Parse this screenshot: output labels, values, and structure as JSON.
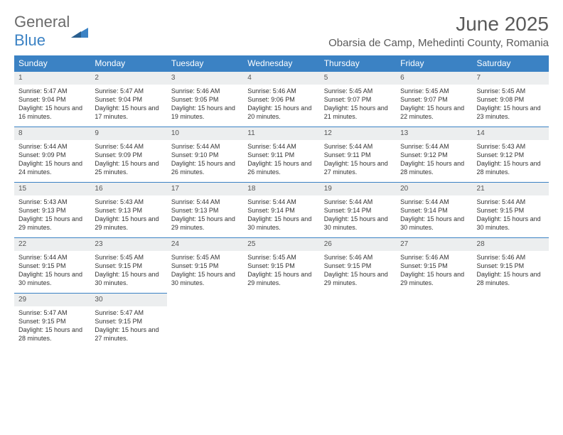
{
  "logo": {
    "word1": "General",
    "word2": "Blue"
  },
  "title": "June 2025",
  "location": "Obarsia de Camp, Mehedinti County, Romania",
  "colors": {
    "header_bg": "#3b82c4",
    "header_text": "#ffffff",
    "daynum_bg": "#eceeef",
    "daynum_border": "#3b82c4",
    "body_text": "#333333",
    "title_text": "#5a5a5a",
    "logo_gray": "#6b6b6b",
    "logo_blue": "#3b82c4"
  },
  "columns": [
    "Sunday",
    "Monday",
    "Tuesday",
    "Wednesday",
    "Thursday",
    "Friday",
    "Saturday"
  ],
  "days": [
    {
      "n": 1,
      "sr": "5:47 AM",
      "ss": "9:04 PM",
      "dl": "15 hours and 16 minutes."
    },
    {
      "n": 2,
      "sr": "5:47 AM",
      "ss": "9:04 PM",
      "dl": "15 hours and 17 minutes."
    },
    {
      "n": 3,
      "sr": "5:46 AM",
      "ss": "9:05 PM",
      "dl": "15 hours and 19 minutes."
    },
    {
      "n": 4,
      "sr": "5:46 AM",
      "ss": "9:06 PM",
      "dl": "15 hours and 20 minutes."
    },
    {
      "n": 5,
      "sr": "5:45 AM",
      "ss": "9:07 PM",
      "dl": "15 hours and 21 minutes."
    },
    {
      "n": 6,
      "sr": "5:45 AM",
      "ss": "9:07 PM",
      "dl": "15 hours and 22 minutes."
    },
    {
      "n": 7,
      "sr": "5:45 AM",
      "ss": "9:08 PM",
      "dl": "15 hours and 23 minutes."
    },
    {
      "n": 8,
      "sr": "5:44 AM",
      "ss": "9:09 PM",
      "dl": "15 hours and 24 minutes."
    },
    {
      "n": 9,
      "sr": "5:44 AM",
      "ss": "9:09 PM",
      "dl": "15 hours and 25 minutes."
    },
    {
      "n": 10,
      "sr": "5:44 AM",
      "ss": "9:10 PM",
      "dl": "15 hours and 26 minutes."
    },
    {
      "n": 11,
      "sr": "5:44 AM",
      "ss": "9:11 PM",
      "dl": "15 hours and 26 minutes."
    },
    {
      "n": 12,
      "sr": "5:44 AM",
      "ss": "9:11 PM",
      "dl": "15 hours and 27 minutes."
    },
    {
      "n": 13,
      "sr": "5:44 AM",
      "ss": "9:12 PM",
      "dl": "15 hours and 28 minutes."
    },
    {
      "n": 14,
      "sr": "5:43 AM",
      "ss": "9:12 PM",
      "dl": "15 hours and 28 minutes."
    },
    {
      "n": 15,
      "sr": "5:43 AM",
      "ss": "9:13 PM",
      "dl": "15 hours and 29 minutes."
    },
    {
      "n": 16,
      "sr": "5:43 AM",
      "ss": "9:13 PM",
      "dl": "15 hours and 29 minutes."
    },
    {
      "n": 17,
      "sr": "5:44 AM",
      "ss": "9:13 PM",
      "dl": "15 hours and 29 minutes."
    },
    {
      "n": 18,
      "sr": "5:44 AM",
      "ss": "9:14 PM",
      "dl": "15 hours and 30 minutes."
    },
    {
      "n": 19,
      "sr": "5:44 AM",
      "ss": "9:14 PM",
      "dl": "15 hours and 30 minutes."
    },
    {
      "n": 20,
      "sr": "5:44 AM",
      "ss": "9:14 PM",
      "dl": "15 hours and 30 minutes."
    },
    {
      "n": 21,
      "sr": "5:44 AM",
      "ss": "9:15 PM",
      "dl": "15 hours and 30 minutes."
    },
    {
      "n": 22,
      "sr": "5:44 AM",
      "ss": "9:15 PM",
      "dl": "15 hours and 30 minutes."
    },
    {
      "n": 23,
      "sr": "5:45 AM",
      "ss": "9:15 PM",
      "dl": "15 hours and 30 minutes."
    },
    {
      "n": 24,
      "sr": "5:45 AM",
      "ss": "9:15 PM",
      "dl": "15 hours and 30 minutes."
    },
    {
      "n": 25,
      "sr": "5:45 AM",
      "ss": "9:15 PM",
      "dl": "15 hours and 29 minutes."
    },
    {
      "n": 26,
      "sr": "5:46 AM",
      "ss": "9:15 PM",
      "dl": "15 hours and 29 minutes."
    },
    {
      "n": 27,
      "sr": "5:46 AM",
      "ss": "9:15 PM",
      "dl": "15 hours and 29 minutes."
    },
    {
      "n": 28,
      "sr": "5:46 AM",
      "ss": "9:15 PM",
      "dl": "15 hours and 28 minutes."
    },
    {
      "n": 29,
      "sr": "5:47 AM",
      "ss": "9:15 PM",
      "dl": "15 hours and 28 minutes."
    },
    {
      "n": 30,
      "sr": "5:47 AM",
      "ss": "9:15 PM",
      "dl": "15 hours and 27 minutes."
    }
  ],
  "labels": {
    "sunrise": "Sunrise:",
    "sunset": "Sunset:",
    "daylight": "Daylight:"
  },
  "layout": {
    "first_weekday_index": 0,
    "rows": 5,
    "cols": 7
  }
}
